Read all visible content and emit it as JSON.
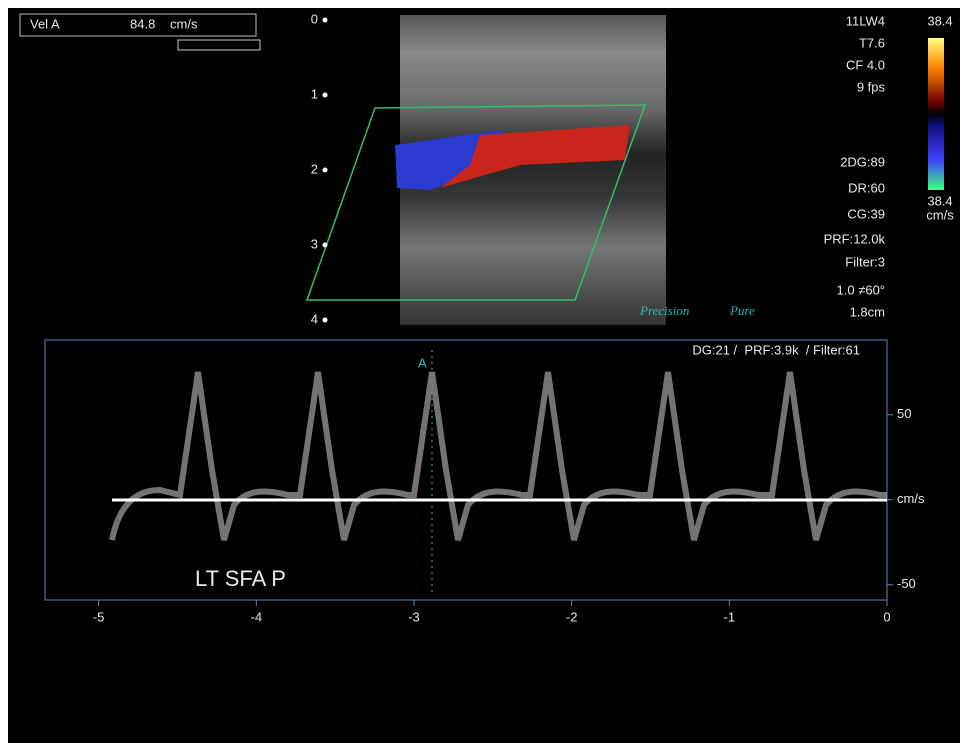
{
  "measurement": {
    "label": "Vel A",
    "value": "84.8",
    "unit": "cm/s"
  },
  "image": {
    "depth_ticks": [
      0,
      1,
      2,
      3,
      4
    ]
  },
  "settings": [
    "11LW4",
    "T7.6",
    "CF 4.0",
    "9 fps"
  ],
  "color_scale": {
    "max": "38.4",
    "min": "38.4",
    "unit": "cm/s"
  },
  "settings2": [
    "2DG:89",
    "DR:60",
    "CG:39",
    "PRF:12.0k",
    "Filter:3",
    "1.0 ≠60°",
    "1.8cm"
  ],
  "logos": [
    "Precision",
    "Pure"
  ],
  "spectral": {
    "header": "DG:21 /  PRF:3.9k  / Filter:61",
    "marker": "A",
    "label": "LT SFA P",
    "ylim": [
      -59,
      94
    ],
    "yticks": [
      50,
      {
        "value": 0,
        "label": "cm/s"
      },
      -50
    ],
    "xlim": [
      -5.34,
      0
    ],
    "xticks": [
      -5,
      -4,
      -3,
      -2,
      -1,
      0
    ]
  }
}
